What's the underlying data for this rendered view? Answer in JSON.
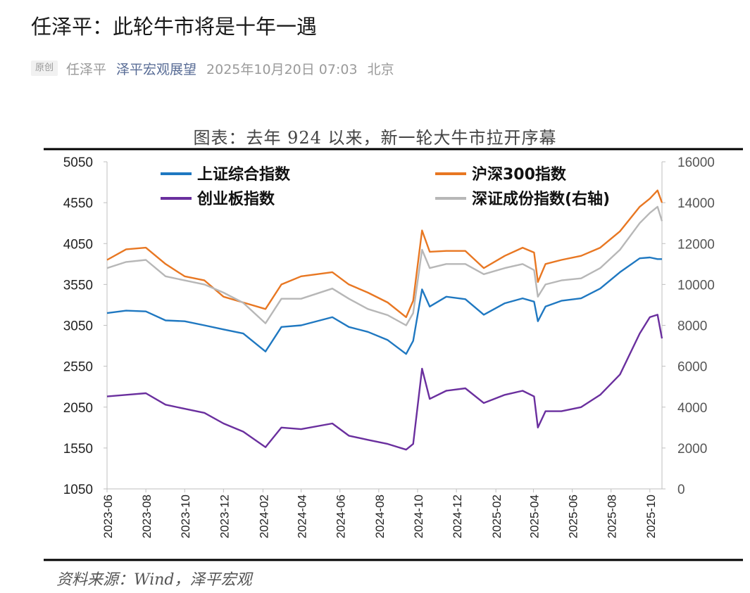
{
  "article": {
    "title": "任泽平：此轮牛市将是十年一遇",
    "badge": "原创",
    "author": "任泽平",
    "account": "泽平宏观展望",
    "date": "2025年10月20日 07:03",
    "location": "北京"
  },
  "chart_data": {
    "type": "line",
    "title": "图表：去年 924 以来，新一轮大牛市拉开序幕",
    "source": "资料来源：Wind，泽平宏观",
    "left_axis": {
      "ticks": [
        1050,
        1550,
        2050,
        2550,
        3050,
        3550,
        4050,
        4550,
        5050
      ],
      "range": [
        1050,
        5050
      ]
    },
    "right_axis": {
      "ticks": [
        0,
        2000,
        4000,
        6000,
        8000,
        10000,
        12000,
        14000,
        16000
      ],
      "range": [
        0,
        16000
      ]
    },
    "x_ticks": [
      "2023-06",
      "2023-08",
      "2023-10",
      "2023-12",
      "2024-02",
      "2024-04",
      "2024-06",
      "2024-08",
      "2024-10",
      "2024-12",
      "2025-02",
      "2025-04",
      "2025-06",
      "2025-08",
      "2025-10"
    ],
    "x_range": [
      "2023-06",
      "2025-10-20"
    ],
    "legend": [
      "上证综合指数",
      "沪深300指数",
      "创业板指数",
      "深证成份指数(右轴)"
    ],
    "series": [
      {
        "name": "上证综合指数",
        "color": "#1f78c1",
        "axis": "left",
        "x": [
          "2023-06-01",
          "2023-07-01",
          "2023-08-01",
          "2023-09-01",
          "2023-10-01",
          "2023-11-01",
          "2023-12-01",
          "2024-01-01",
          "2024-02-05",
          "2024-03-01",
          "2024-04-01",
          "2024-05-20",
          "2024-06-15",
          "2024-07-15",
          "2024-08-15",
          "2024-09-13",
          "2024-09-24",
          "2024-10-08",
          "2024-10-20",
          "2024-11-15",
          "2024-12-15",
          "2025-01-13",
          "2025-02-15",
          "2025-03-15",
          "2025-04-02",
          "2025-04-08",
          "2025-04-20",
          "2025-05-15",
          "2025-06-15",
          "2025-07-15",
          "2025-08-15",
          "2025-09-15",
          "2025-10-01",
          "2025-10-13",
          "2025-10-20"
        ],
        "values": [
          3200,
          3230,
          3220,
          3110,
          3100,
          3050,
          3000,
          2950,
          2730,
          3030,
          3050,
          3150,
          3030,
          2970,
          2870,
          2700,
          2860,
          3490,
          3280,
          3400,
          3370,
          3180,
          3320,
          3380,
          3340,
          3100,
          3280,
          3350,
          3380,
          3500,
          3700,
          3870,
          3880,
          3860,
          3860
        ]
      },
      {
        "name": "沪深300指数",
        "color": "#e87722",
        "axis": "left",
        "x": [
          "2023-06-01",
          "2023-07-01",
          "2023-08-01",
          "2023-09-01",
          "2023-10-01",
          "2023-11-01",
          "2023-12-01",
          "2024-01-01",
          "2024-02-05",
          "2024-03-01",
          "2024-04-01",
          "2024-05-20",
          "2024-06-15",
          "2024-07-15",
          "2024-08-15",
          "2024-09-13",
          "2024-09-24",
          "2024-10-08",
          "2024-10-20",
          "2024-11-15",
          "2024-12-15",
          "2025-01-13",
          "2025-02-15",
          "2025-03-15",
          "2025-04-02",
          "2025-04-08",
          "2025-04-20",
          "2025-05-15",
          "2025-06-15",
          "2025-07-15",
          "2025-08-15",
          "2025-09-15",
          "2025-10-01",
          "2025-10-13",
          "2025-10-20"
        ],
        "values": [
          3850,
          3980,
          4000,
          3800,
          3650,
          3600,
          3400,
          3330,
          3250,
          3550,
          3650,
          3700,
          3550,
          3450,
          3330,
          3150,
          3350,
          4210,
          3950,
          3960,
          3960,
          3750,
          3900,
          4000,
          3940,
          3580,
          3800,
          3850,
          3900,
          4000,
          4200,
          4500,
          4600,
          4700,
          4550
        ]
      },
      {
        "name": "创业板指数",
        "color": "#6a2f9e",
        "axis": "left",
        "x": [
          "2023-06-01",
          "2023-07-01",
          "2023-08-01",
          "2023-09-01",
          "2023-10-01",
          "2023-11-01",
          "2023-12-01",
          "2024-01-01",
          "2024-02-05",
          "2024-03-01",
          "2024-04-01",
          "2024-05-20",
          "2024-06-15",
          "2024-07-15",
          "2024-08-15",
          "2024-09-13",
          "2024-09-24",
          "2024-10-08",
          "2024-10-20",
          "2024-11-15",
          "2024-12-15",
          "2025-01-13",
          "2025-02-15",
          "2025-03-15",
          "2025-04-02",
          "2025-04-08",
          "2025-04-20",
          "2025-05-15",
          "2025-06-15",
          "2025-07-15",
          "2025-08-15",
          "2025-09-15",
          "2025-10-01",
          "2025-10-13",
          "2025-10-20"
        ],
        "values": [
          2180,
          2200,
          2220,
          2080,
          2030,
          1980,
          1850,
          1750,
          1560,
          1800,
          1780,
          1850,
          1700,
          1650,
          1600,
          1530,
          1600,
          2520,
          2150,
          2250,
          2280,
          2100,
          2200,
          2250,
          2180,
          1800,
          2000,
          2000,
          2050,
          2200,
          2450,
          2950,
          3150,
          3180,
          2890
        ]
      },
      {
        "name": "深证成份指数(右轴)",
        "color": "#b7b7b7",
        "axis": "right",
        "x": [
          "2023-06-01",
          "2023-07-01",
          "2023-08-01",
          "2023-09-01",
          "2023-10-01",
          "2023-11-01",
          "2023-12-01",
          "2024-01-01",
          "2024-02-05",
          "2024-03-01",
          "2024-04-01",
          "2024-05-20",
          "2024-06-15",
          "2024-07-15",
          "2024-08-15",
          "2024-09-13",
          "2024-09-24",
          "2024-10-08",
          "2024-10-20",
          "2024-11-15",
          "2024-12-15",
          "2025-01-13",
          "2025-02-15",
          "2025-03-15",
          "2025-04-02",
          "2025-04-08",
          "2025-04-20",
          "2025-05-15",
          "2025-06-15",
          "2025-07-15",
          "2025-08-15",
          "2025-09-15",
          "2025-10-01",
          "2025-10-13",
          "2025-10-20"
        ],
        "values": [
          10800,
          11100,
          11200,
          10400,
          10200,
          10000,
          9600,
          9100,
          8100,
          9300,
          9300,
          9800,
          9300,
          8800,
          8500,
          8000,
          8600,
          11700,
          10800,
          11000,
          11000,
          10500,
          10800,
          11000,
          10700,
          9400,
          10000,
          10200,
          10300,
          10800,
          11700,
          13000,
          13500,
          13800,
          13100
        ]
      }
    ]
  }
}
